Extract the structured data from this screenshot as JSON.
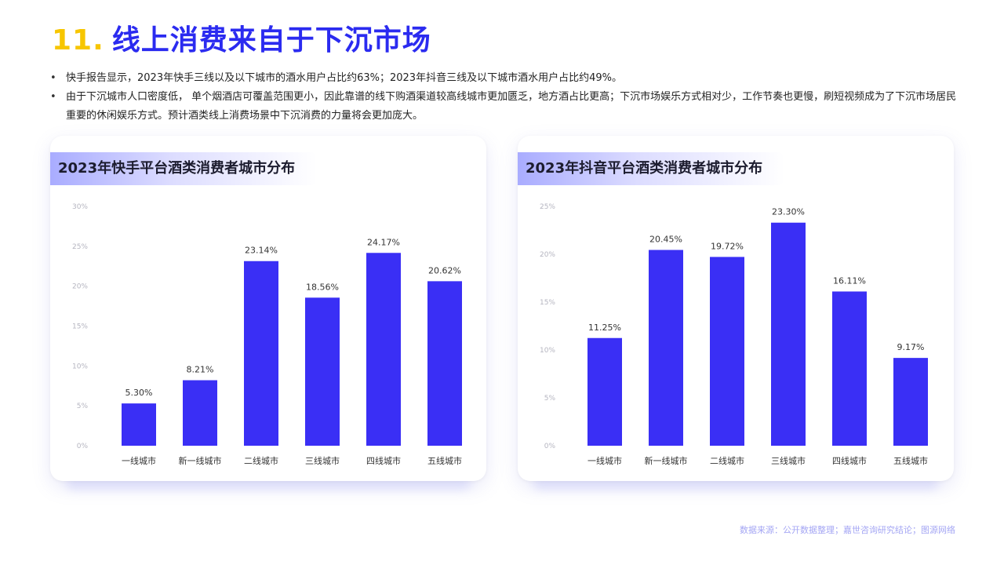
{
  "header": {
    "number": "11.",
    "title": "线上消费来自于下沉市场"
  },
  "bullets": [
    "快手报告显示，2023年快手三线以及以下城市的酒水用户占比约63%；2023年抖音三线及以下城市酒水用户占比约49%。",
    "由于下沉城市人口密度低， 单个烟酒店可覆盖范围更小，因此靠谱的线下购酒渠道较高线城市更加匮乏，地方酒占比更高；下沉市场娱乐方式相对少，工作节奏也更慢，刷短视频成为了下沉市场居民重要的休闲娱乐方式。预计酒类线上消费场景中下沉消费的力量将会更加庞大。"
  ],
  "colors": {
    "bar": "#3a2ff5",
    "title_blue": "#2b2bf0",
    "title_yellow": "#f7c600",
    "source": "#a4a6f4"
  },
  "source": "数据来源：公开数据整理；嘉世咨询研究结论；图源网络",
  "chart_data": [
    {
      "type": "bar",
      "title": "2023年快手平台酒类消费者城市分布",
      "categories": [
        "一线城市",
        "新一线城市",
        "二线城市",
        "三线城市",
        "四线城市",
        "五线城市"
      ],
      "values": [
        5.3,
        8.21,
        23.14,
        18.56,
        24.17,
        20.62
      ],
      "value_labels": [
        "5.30%",
        "8.21%",
        "23.14%",
        "18.56%",
        "24.17%",
        "20.62%"
      ],
      "yticks": [
        0,
        5,
        10,
        15,
        20,
        25,
        30
      ],
      "ytick_labels": [
        "0%",
        "5%",
        "10%",
        "15%",
        "20%",
        "25%",
        "30%"
      ],
      "ylim": [
        0,
        30
      ],
      "xlabel": "",
      "ylabel": "",
      "grid": false
    },
    {
      "type": "bar",
      "title": "2023年抖音平台酒类消费者城市分布",
      "categories": [
        "一线城市",
        "新一线城市",
        "二线城市",
        "三线城市",
        "四线城市",
        "五线城市"
      ],
      "values": [
        11.25,
        20.45,
        19.72,
        23.3,
        16.11,
        9.17
      ],
      "value_labels": [
        "11.25%",
        "20.45%",
        "19.72%",
        "23.30%",
        "16.11%",
        "9.17%"
      ],
      "yticks": [
        0,
        5,
        10,
        15,
        20,
        25
      ],
      "ytick_labels": [
        "0%",
        "5%",
        "10%",
        "15%",
        "20%",
        "25%"
      ],
      "ylim": [
        0,
        25
      ],
      "xlabel": "",
      "ylabel": "",
      "grid": false
    }
  ]
}
